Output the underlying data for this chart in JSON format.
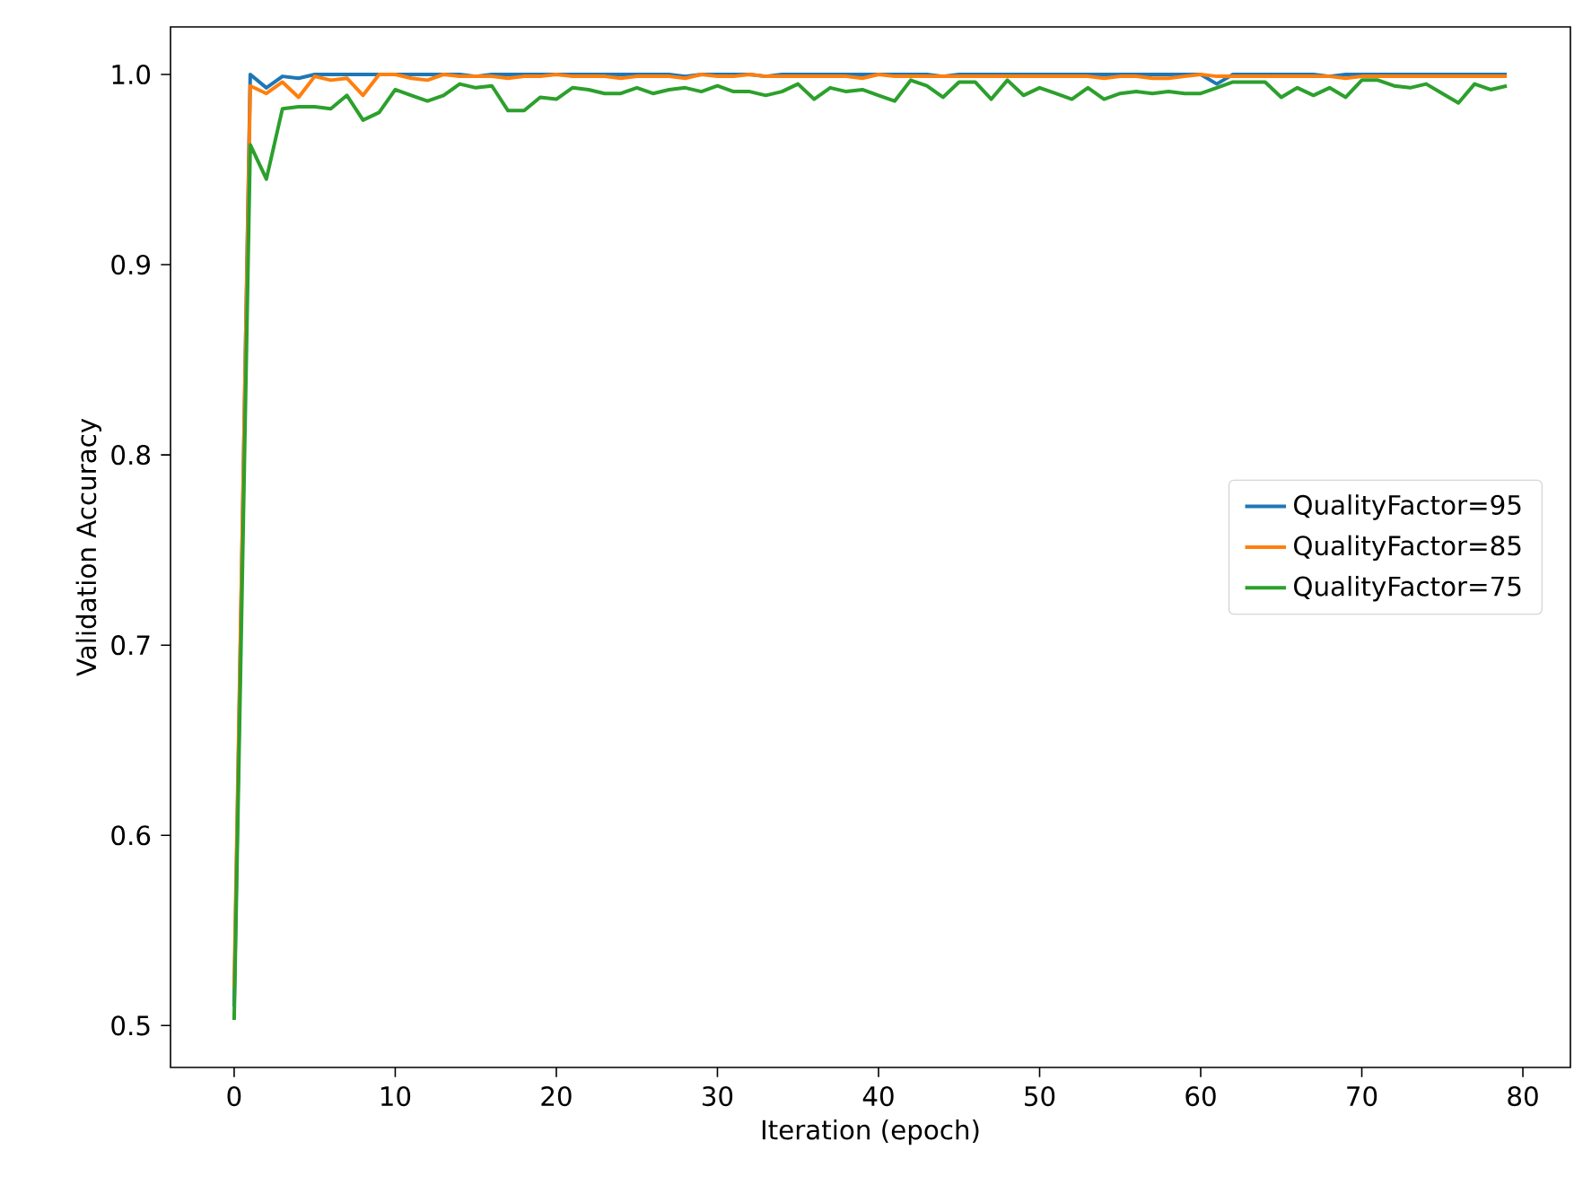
{
  "chart_data": {
    "type": "line",
    "xlabel": "Iteration (epoch)",
    "ylabel": "Validation Accuracy",
    "x": [
      0,
      1,
      2,
      3,
      4,
      5,
      6,
      7,
      8,
      9,
      10,
      11,
      12,
      13,
      14,
      15,
      16,
      17,
      18,
      19,
      20,
      21,
      22,
      23,
      24,
      25,
      26,
      27,
      28,
      29,
      30,
      31,
      32,
      33,
      34,
      35,
      36,
      37,
      38,
      39,
      40,
      41,
      42,
      43,
      44,
      45,
      46,
      47,
      48,
      49,
      50,
      51,
      52,
      53,
      54,
      55,
      56,
      57,
      58,
      59,
      60,
      61,
      62,
      63,
      64,
      65,
      66,
      67,
      68,
      69,
      70,
      71,
      72,
      73,
      74,
      75,
      76,
      77,
      78,
      79
    ],
    "series": [
      {
        "name": "QualityFactor=95",
        "color": "#1f77b4",
        "values": [
          0.51,
          1.0,
          0.993,
          0.999,
          0.998,
          1.0,
          1.0,
          1.0,
          1.0,
          1.0,
          1.0,
          1.0,
          1.0,
          1.0,
          1.0,
          0.999,
          1.0,
          1.0,
          1.0,
          1.0,
          1.0,
          1.0,
          1.0,
          1.0,
          1.0,
          1.0,
          1.0,
          1.0,
          0.999,
          1.0,
          1.0,
          1.0,
          1.0,
          0.999,
          1.0,
          1.0,
          1.0,
          1.0,
          1.0,
          1.0,
          1.0,
          1.0,
          1.0,
          1.0,
          0.999,
          1.0,
          1.0,
          1.0,
          1.0,
          1.0,
          1.0,
          1.0,
          1.0,
          1.0,
          1.0,
          1.0,
          1.0,
          1.0,
          1.0,
          1.0,
          1.0,
          0.995,
          1.0,
          1.0,
          1.0,
          1.0,
          1.0,
          1.0,
          0.999,
          1.0,
          1.0,
          1.0,
          1.0,
          1.0,
          1.0,
          1.0,
          1.0,
          1.0,
          1.0,
          1.0
        ]
      },
      {
        "name": "QualityFactor=85",
        "color": "#ff7f0e",
        "values": [
          0.52,
          0.994,
          0.99,
          0.996,
          0.988,
          0.999,
          0.997,
          0.998,
          0.989,
          1.0,
          1.0,
          0.998,
          0.997,
          1.0,
          0.999,
          0.999,
          0.999,
          0.998,
          0.999,
          0.999,
          1.0,
          0.999,
          0.999,
          0.999,
          0.998,
          0.999,
          0.999,
          0.999,
          0.998,
          1.0,
          0.999,
          0.999,
          1.0,
          0.999,
          0.999,
          0.999,
          0.999,
          0.999,
          0.999,
          0.998,
          1.0,
          0.999,
          0.999,
          0.999,
          0.999,
          0.999,
          0.999,
          0.999,
          0.999,
          0.999,
          0.999,
          0.999,
          0.999,
          0.999,
          0.998,
          0.999,
          0.999,
          0.998,
          0.998,
          0.999,
          1.0,
          0.999,
          0.999,
          0.999,
          0.999,
          0.999,
          0.999,
          0.999,
          0.999,
          0.998,
          0.999,
          0.999,
          0.999,
          0.999,
          0.999,
          0.999,
          0.999,
          0.999,
          0.999,
          0.999
        ]
      },
      {
        "name": "QualityFactor=75",
        "color": "#2ca02c",
        "values": [
          0.503,
          0.963,
          0.945,
          0.982,
          0.983,
          0.983,
          0.982,
          0.989,
          0.976,
          0.98,
          0.992,
          0.989,
          0.986,
          0.989,
          0.995,
          0.993,
          0.994,
          0.981,
          0.981,
          0.988,
          0.987,
          0.993,
          0.992,
          0.99,
          0.99,
          0.993,
          0.99,
          0.992,
          0.993,
          0.991,
          0.994,
          0.991,
          0.991,
          0.989,
          0.991,
          0.995,
          0.987,
          0.993,
          0.991,
          0.992,
          0.989,
          0.986,
          0.997,
          0.994,
          0.988,
          0.996,
          0.996,
          0.987,
          0.997,
          0.989,
          0.993,
          0.99,
          0.987,
          0.993,
          0.987,
          0.99,
          0.991,
          0.99,
          0.991,
          0.99,
          0.99,
          0.993,
          0.996,
          0.996,
          0.996,
          0.988,
          0.993,
          0.989,
          0.993,
          0.988,
          0.997,
          0.997,
          0.994,
          0.993,
          0.995,
          0.99,
          0.985,
          0.995,
          0.992,
          0.994
        ]
      }
    ],
    "xlim": [
      -3.95,
      82.95
    ],
    "ylim": [
      0.478,
      1.025
    ],
    "xticks": [
      0,
      10,
      20,
      30,
      40,
      50,
      60,
      70,
      80
    ],
    "yticks": [
      {
        "value": 0.5,
        "label": "0.5"
      },
      {
        "value": 0.6,
        "label": "0.6"
      },
      {
        "value": 0.7,
        "label": "0.7"
      },
      {
        "value": 0.8,
        "label": "0.8"
      },
      {
        "value": 0.9,
        "label": "0.9"
      },
      {
        "value": 1.0,
        "label": "1.0"
      }
    ],
    "legend": "right",
    "grid": false,
    "marker": "none",
    "line_style": "solid"
  }
}
